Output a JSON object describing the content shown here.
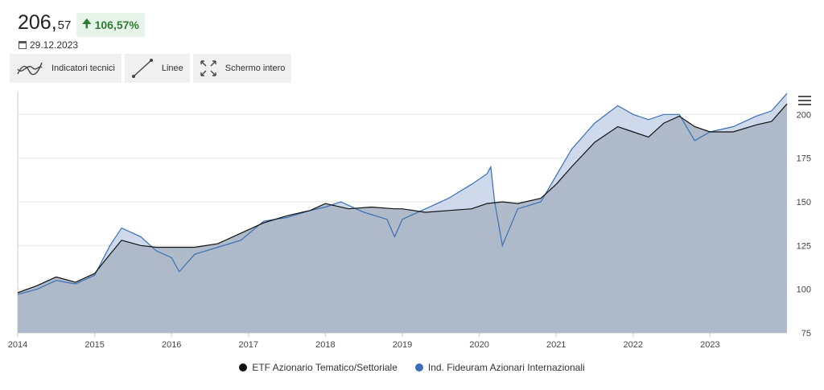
{
  "header": {
    "price_int": "206,",
    "price_dec": "57",
    "change": "106,57%",
    "date": "29.12.2023"
  },
  "toolbar": {
    "indicators_label": "Indicatori tecnici",
    "lines_label": "Linee",
    "fullscreen_label": "Schermo intero"
  },
  "colors": {
    "series_etf": "#111111",
    "series_index": "#3a6fb5",
    "area_fill": "#a9b6c8",
    "positive": "#2e7d32"
  },
  "chart_data": {
    "type": "area",
    "x_ticks": [
      "2014",
      "2015",
      "2016",
      "2017",
      "2018",
      "2019",
      "2020",
      "2021",
      "2022",
      "2023"
    ],
    "y_ticks": [
      75,
      100,
      125,
      150,
      175,
      200
    ],
    "ylim": [
      75,
      213
    ],
    "grid": true,
    "legend_position": "bottom",
    "series": [
      {
        "name": "ETF Azionario Tematico/Settoriale",
        "x": [
          2014.0,
          2014.25,
          2014.5,
          2014.75,
          2015.0,
          2015.2,
          2015.35,
          2015.6,
          2015.8,
          2016.0,
          2016.3,
          2016.6,
          2016.9,
          2017.2,
          2017.5,
          2017.8,
          2018.0,
          2018.3,
          2018.6,
          2018.9,
          2019.0,
          2019.3,
          2019.6,
          2019.9,
          2020.1,
          2020.3,
          2020.5,
          2020.8,
          2021.0,
          2021.2,
          2021.5,
          2021.8,
          2022.0,
          2022.2,
          2022.4,
          2022.6,
          2022.8,
          2023.0,
          2023.3,
          2023.6,
          2023.8,
          2024.0
        ],
        "values": [
          98,
          102,
          107,
          104,
          109,
          120,
          128,
          125,
          124,
          124,
          124,
          126,
          132,
          138,
          142,
          145,
          149,
          146,
          147,
          146,
          146,
          144,
          145,
          146,
          149,
          150,
          149,
          152,
          160,
          170,
          184,
          193,
          190,
          187,
          195,
          199,
          193,
          190,
          190,
          194,
          196,
          206
        ]
      },
      {
        "name": "Ind. Fideuram Azionari Internazionali",
        "x": [
          2014.0,
          2014.25,
          2014.5,
          2014.75,
          2015.0,
          2015.2,
          2015.35,
          2015.6,
          2015.8,
          2016.0,
          2016.1,
          2016.3,
          2016.6,
          2016.9,
          2017.2,
          2017.5,
          2017.8,
          2018.0,
          2018.2,
          2018.5,
          2018.8,
          2018.9,
          2019.0,
          2019.3,
          2019.6,
          2019.9,
          2020.1,
          2020.15,
          2020.2,
          2020.3,
          2020.5,
          2020.8,
          2021.0,
          2021.2,
          2021.5,
          2021.8,
          2022.0,
          2022.2,
          2022.4,
          2022.6,
          2022.8,
          2023.0,
          2023.3,
          2023.6,
          2023.8,
          2024.0
        ],
        "values": [
          97,
          100,
          105,
          103,
          108,
          125,
          135,
          130,
          122,
          118,
          110,
          120,
          124,
          128,
          139,
          141,
          145,
          147,
          150,
          144,
          140,
          130,
          140,
          146,
          152,
          160,
          166,
          170,
          150,
          125,
          146,
          150,
          165,
          180,
          195,
          205,
          200,
          197,
          200,
          200,
          185,
          190,
          193,
          199,
          202,
          212
        ]
      }
    ]
  }
}
